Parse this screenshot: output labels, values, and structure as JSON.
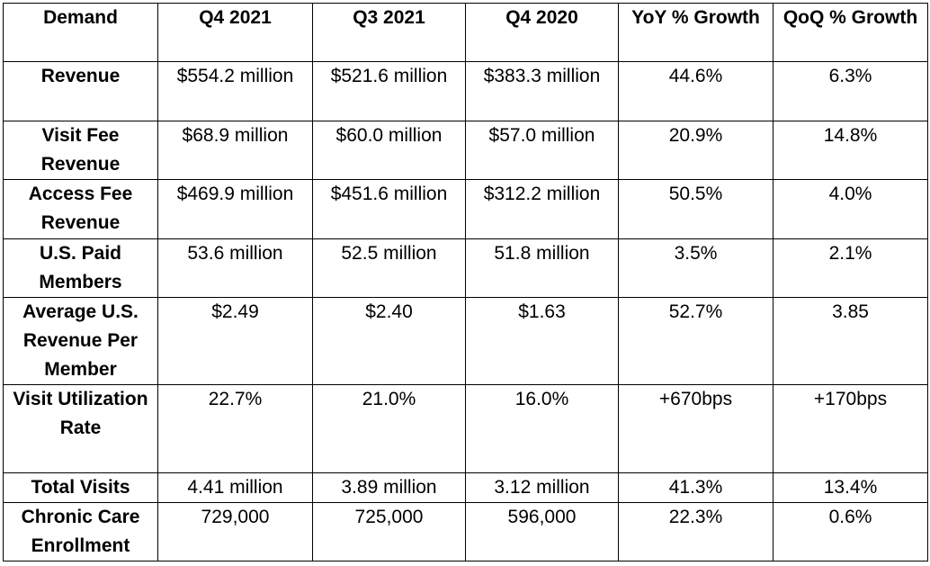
{
  "table": {
    "headers": [
      "Demand",
      "Q4 2021",
      "Q3 2021",
      "Q4 2020",
      "YoY % Growth",
      "QoQ % Growth"
    ],
    "rows": [
      {
        "label": "Revenue",
        "q4_2021": "$554.2 million",
        "q3_2021": "$521.6 million",
        "q4_2020": "$383.3 million",
        "yoy": "44.6%",
        "qoq": "6.3%"
      },
      {
        "label": "Visit Fee Revenue",
        "q4_2021": "$68.9 million",
        "q3_2021": "$60.0 million",
        "q4_2020": "$57.0 million",
        "yoy": "20.9%",
        "qoq": "14.8%"
      },
      {
        "label": "Access Fee Revenue",
        "q4_2021": "$469.9 million",
        "q3_2021": "$451.6 million",
        "q4_2020": "$312.2 million",
        "yoy": "50.5%",
        "qoq": "4.0%"
      },
      {
        "label": "U.S. Paid Members",
        "q4_2021": "53.6 million",
        "q3_2021": "52.5 million",
        "q4_2020": "51.8 million",
        "yoy": "3.5%",
        "qoq": "2.1%"
      },
      {
        "label": "Average U.S. Revenue Per Member",
        "q4_2021": "$2.49",
        "q3_2021": "$2.40",
        "q4_2020": "$1.63",
        "yoy": "52.7%",
        "qoq": "3.85"
      },
      {
        "label": "Visit Utilization Rate",
        "q4_2021": "22.7%",
        "q3_2021": "21.0%",
        "q4_2020": "16.0%",
        "yoy": "+670bps",
        "qoq": "+170bps"
      },
      {
        "label": "Total Visits",
        "q4_2021": "4.41 million",
        "q3_2021": "3.89 million",
        "q4_2020": "3.12 million",
        "yoy": "41.3%",
        "qoq": "13.4%"
      },
      {
        "label": "Chronic Care Enrollment",
        "q4_2021": "729,000",
        "q3_2021": "725,000",
        "q4_2020": "596,000",
        "yoy": "22.3%",
        "qoq": "0.6%"
      }
    ]
  }
}
